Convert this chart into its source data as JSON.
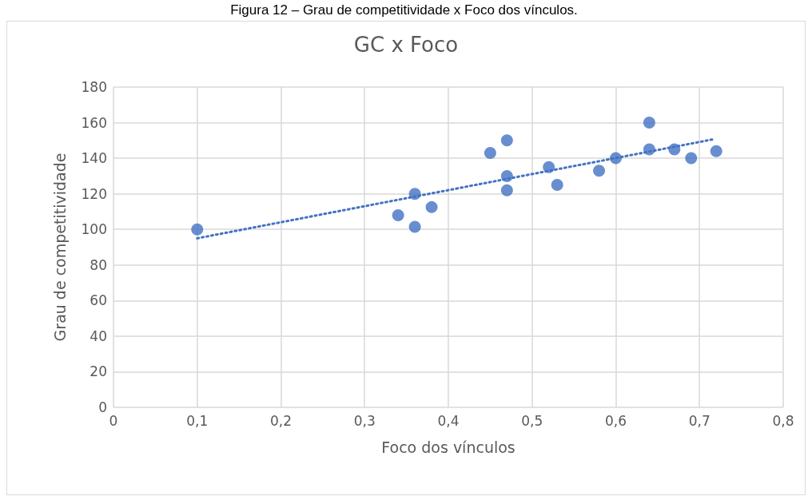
{
  "chart_data": {
    "type": "scatter",
    "title": "GC x Foco",
    "xlabel": "Foco dos vínculos",
    "ylabel": "Grau de competitividade",
    "annotations": [
      "Figura 12 – Grau de competitividade x Foco dos vínculos."
    ],
    "series": [
      {
        "color": "#4472c4",
        "marker": "circle",
        "x": [
          0.1,
          0.34,
          0.36,
          0.36,
          0.38,
          0.45,
          0.47,
          0.47,
          0.47,
          0.52,
          0.53,
          0.58,
          0.6,
          0.64,
          0.64,
          0.67,
          0.69,
          0.72
        ],
        "values": [
          100,
          108,
          120,
          101.5,
          112.5,
          143,
          150,
          130,
          122,
          135,
          125,
          133,
          140,
          160,
          145,
          145,
          140,
          144
        ]
      },
      {
        "type": "line",
        "color": "#4472c4",
        "marker": "none",
        "line_style": "dotted",
        "x": [
          0.1,
          0.715
        ],
        "values": [
          95,
          150.5
        ]
      }
    ],
    "xlim": [
      0,
      0.8
    ],
    "xticks": [
      {
        "value": 0,
        "label": "0"
      },
      {
        "value": 0.1,
        "label": "0,1"
      },
      {
        "value": 0.2,
        "label": "0,2"
      },
      {
        "value": 0.3,
        "label": "0,3"
      },
      {
        "value": 0.4,
        "label": "0,4"
      },
      {
        "value": 0.5,
        "label": "0,5"
      },
      {
        "value": 0.6,
        "label": "0,6"
      },
      {
        "value": 0.7,
        "label": "0,7"
      },
      {
        "value": 0.8,
        "label": "0,8"
      }
    ],
    "ylim": [
      0,
      180
    ],
    "yticks": [
      0,
      20,
      40,
      60,
      80,
      100,
      120,
      140,
      160,
      180
    ],
    "grid": true
  }
}
